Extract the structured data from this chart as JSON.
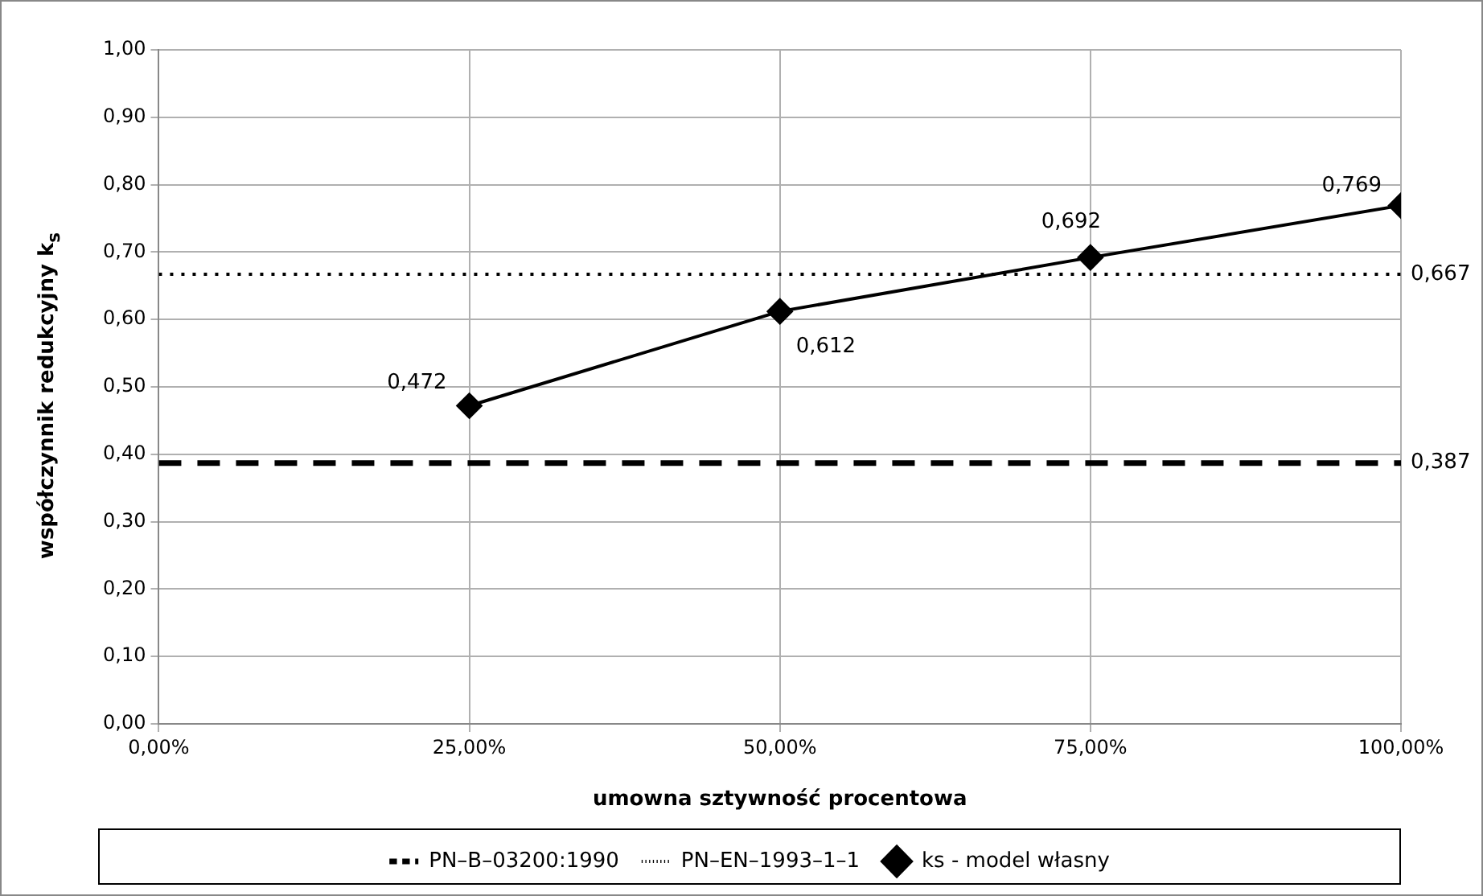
{
  "chart_data": {
    "type": "line",
    "xlabel": "umowna sztywność procentowa",
    "ylabel": "współczynnik redukcyjny k$_{s}$",
    "xlim": [
      0,
      100
    ],
    "xticks": [
      {
        "value": 0,
        "label": "0,00%"
      },
      {
        "value": 25,
        "label": "25,00%"
      },
      {
        "value": 50,
        "label": "50,00%"
      },
      {
        "value": 75,
        "label": "75,00%"
      },
      {
        "value": 100,
        "label": "100,00%"
      }
    ],
    "ylim": [
      0,
      1
    ],
    "yticks": [
      {
        "value": 0,
        "label": "0,00"
      },
      {
        "value": 0.1,
        "label": "0,10"
      },
      {
        "value": 0.2,
        "label": "0,20"
      },
      {
        "value": 0.3,
        "label": "0,30"
      },
      {
        "value": 0.4,
        "label": "0,40"
      },
      {
        "value": 0.5,
        "label": "0,50"
      },
      {
        "value": 0.6,
        "label": "0,60"
      },
      {
        "value": 0.7,
        "label": "0,70"
      },
      {
        "value": 0.8,
        "label": "0,80"
      },
      {
        "value": 0.9,
        "label": "0,90"
      },
      {
        "value": 1,
        "label": "1,00"
      }
    ],
    "grid": true,
    "legend": "bottom",
    "series": [
      {
        "name": "PN–B–03200:1990",
        "color": "#000000",
        "x": [
          0,
          100
        ],
        "values": [
          0.387,
          0.387
        ],
        "line_style": "dashed",
        "marker": "none",
        "value_labels": [
          null,
          "0,387"
        ]
      },
      {
        "name": "PN–EN–1993–1–1",
        "color": "#000000",
        "x": [
          0,
          100
        ],
        "values": [
          0.667,
          0.667
        ],
        "line_style": "dotted",
        "marker": "none",
        "value_labels": [
          null,
          "0,667"
        ]
      },
      {
        "name": "ks - model własny",
        "color": "#000000",
        "x": [
          25,
          50,
          75,
          100
        ],
        "values": [
          0.472,
          0.612,
          0.692,
          0.769
        ],
        "line_style": "solid",
        "marker": "diamond",
        "value_labels": [
          "0,472",
          "0,612",
          "0,692",
          "0,769"
        ]
      }
    ]
  }
}
